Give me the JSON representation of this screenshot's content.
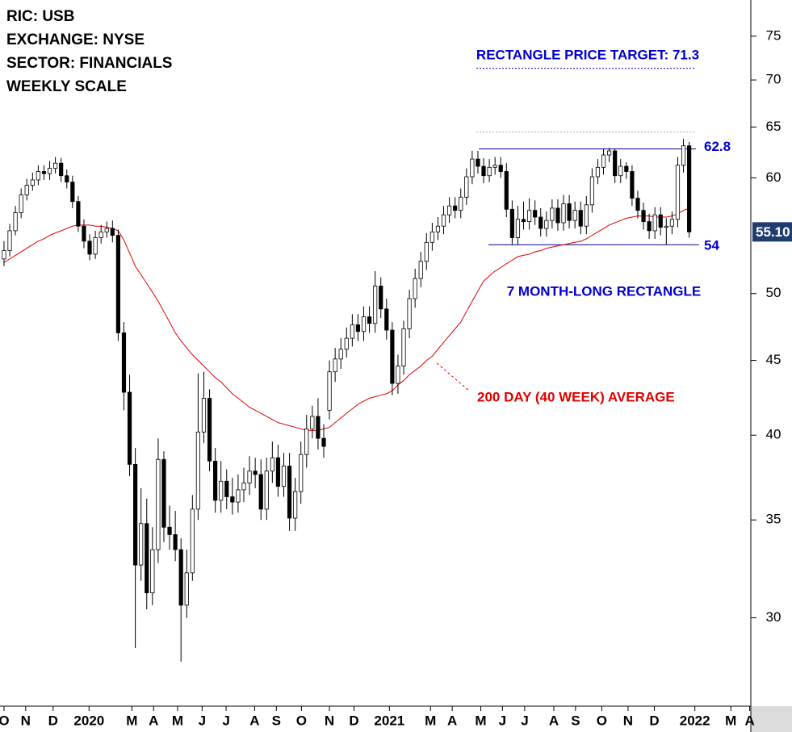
{
  "chart_data": {
    "type": "candlestick",
    "title_lines": [
      "RIC: USB",
      "EXCHANGE: NYSE",
      "SECTOR: FINANCIALS",
      "WEEKLY SCALE"
    ],
    "open": [
      52.8,
      53.5,
      55.2,
      56.8,
      58.4,
      59.3,
      59.8,
      60.6,
      60.4,
      60.9,
      61.4,
      60.2,
      59.6,
      57.8,
      55.6,
      54.3,
      53.2,
      54.6,
      55.1,
      55.4,
      54.8,
      47.0,
      42.8,
      38.2,
      32.6,
      34.8,
      31.2,
      33.4,
      38.5,
      34.6,
      34.2,
      33.4,
      30.6,
      32.2,
      35.6,
      40.2,
      42.4,
      38.4,
      36.1,
      37.2,
      36.3,
      36.0,
      36.7,
      37.1,
      37.8,
      37.6,
      35.6,
      37.8,
      38.6,
      36.9,
      38.1,
      35.1,
      36.6,
      38.8,
      40.4,
      41.2,
      39.8,
      41.6,
      44.2,
      45.1,
      45.8,
      46.6,
      47.6,
      47.1,
      48.2,
      47.7,
      50.6,
      48.8,
      47.2,
      43.4,
      44.6,
      47.3,
      49.6,
      51.2,
      52.6,
      54.2,
      55.1,
      55.6,
      56.6,
      57.4,
      57.0,
      58.2,
      60.1,
      61.8,
      61.1,
      60.2,
      61.0,
      61.2,
      60.6,
      57.1,
      54.6,
      56.2,
      56.0,
      57.0,
      56.4,
      55.4,
      56.1,
      57.2,
      55.9,
      57.6,
      56.1,
      57.0,
      55.6,
      57.5,
      60.1,
      61.0,
      62.2,
      62.6,
      60.2,
      61.1,
      60.6,
      58.1,
      57.0,
      56.0,
      55.2,
      56.6,
      55.5,
      55.6,
      56.2,
      61.2,
      63.1
    ],
    "high": [
      54.3,
      55.8,
      57.4,
      59.0,
      59.9,
      60.5,
      61.2,
      61.2,
      61.6,
      62.0,
      61.9,
      60.8,
      60.2,
      58.3,
      56.2,
      54.9,
      55.2,
      55.7,
      56.0,
      56.1,
      55.3,
      47.8,
      44.0,
      39.2,
      36.8,
      36.2,
      34.6,
      39.8,
      39.0,
      35.8,
      35.5,
      34.0,
      33.4,
      36.4,
      44.1,
      44.2,
      43.0,
      39.2,
      38.4,
      37.9,
      37.4,
      37.6,
      38.0,
      38.7,
      38.6,
      38.5,
      38.6,
      39.6,
      39.4,
      38.9,
      38.9,
      37.4,
      39.6,
      41.3,
      41.9,
      42.4,
      40.7,
      45.0,
      45.9,
      46.6,
      47.4,
      48.4,
      48.4,
      49.0,
      49.0,
      51.8,
      51.3,
      49.6,
      47.8,
      45.4,
      47.9,
      50.3,
      52.0,
      53.4,
      55.0,
      55.9,
      56.4,
      57.4,
      58.2,
      58.2,
      59.0,
      60.9,
      62.6,
      62.6,
      61.9,
      61.8,
      62.0,
      62.0,
      61.4,
      57.9,
      57.4,
      57.8,
      58.1,
      57.9,
      57.2,
      56.9,
      58.0,
      58.0,
      58.4,
      58.4,
      57.8,
      57.8,
      58.3,
      60.9,
      61.8,
      62.8,
      62.9,
      62.8,
      61.8,
      61.5,
      61.2,
      58.8,
      57.7,
      56.7,
      57.3,
      57.3,
      56.3,
      56.9,
      62.0,
      63.8,
      63.5
    ],
    "low": [
      52.2,
      53.0,
      54.8,
      56.3,
      57.9,
      58.8,
      59.3,
      59.8,
      59.8,
      60.4,
      59.6,
      59.0,
      57.2,
      55.1,
      53.7,
      52.7,
      52.8,
      54.1,
      54.6,
      54.2,
      46.4,
      41.6,
      37.5,
      28.6,
      31.8,
      30.4,
      30.6,
      32.7,
      33.8,
      33.4,
      32.8,
      28.0,
      30.0,
      31.8,
      35.0,
      39.5,
      37.8,
      35.4,
      35.4,
      35.6,
      35.3,
      35.4,
      36.0,
      36.4,
      36.8,
      35.0,
      35.0,
      37.1,
      36.3,
      36.3,
      34.4,
      34.4,
      35.9,
      38.0,
      39.8,
      39.1,
      38.6,
      41.0,
      43.5,
      44.4,
      45.2,
      46.0,
      46.4,
      46.4,
      47.0,
      47.0,
      48.1,
      46.5,
      42.6,
      42.7,
      44.0,
      46.6,
      48.9,
      50.5,
      51.9,
      53.5,
      54.4,
      54.9,
      55.9,
      56.3,
      56.3,
      57.5,
      59.4,
      60.4,
      59.5,
      59.6,
      60.3,
      60.0,
      56.4,
      54.0,
      54.0,
      55.3,
      55.3,
      55.7,
      54.7,
      54.7,
      55.4,
      55.2,
      55.2,
      55.4,
      55.4,
      54.9,
      54.9,
      56.8,
      59.4,
      60.3,
      61.5,
      59.5,
      59.5,
      59.9,
      57.4,
      56.3,
      55.3,
      54.5,
      54.5,
      54.8,
      54.0,
      54.9,
      55.5,
      60.5,
      54.6
    ],
    "close": [
      53.5,
      55.2,
      56.8,
      58.4,
      59.3,
      59.8,
      60.6,
      60.4,
      60.9,
      61.4,
      60.2,
      59.6,
      57.8,
      55.6,
      54.3,
      53.2,
      54.6,
      55.1,
      55.4,
      54.8,
      47.0,
      42.8,
      38.2,
      32.6,
      34.8,
      31.2,
      33.4,
      38.5,
      34.6,
      34.2,
      33.4,
      30.6,
      32.2,
      35.6,
      40.2,
      42.4,
      38.4,
      36.1,
      37.2,
      36.3,
      36.0,
      36.7,
      37.1,
      37.8,
      37.6,
      35.6,
      37.8,
      38.6,
      36.9,
      38.1,
      35.1,
      36.6,
      38.8,
      40.4,
      41.2,
      39.8,
      39.3,
      44.2,
      45.1,
      45.8,
      46.6,
      47.6,
      47.1,
      48.2,
      47.7,
      50.6,
      48.8,
      47.2,
      43.4,
      44.6,
      47.3,
      49.6,
      51.2,
      52.6,
      54.2,
      55.1,
      55.6,
      56.6,
      57.4,
      57.0,
      58.2,
      60.1,
      61.8,
      61.1,
      60.2,
      61.0,
      61.2,
      60.6,
      57.1,
      54.6,
      56.2,
      56.0,
      57.0,
      56.4,
      55.4,
      56.1,
      57.2,
      55.9,
      57.6,
      56.1,
      57.0,
      55.6,
      57.5,
      60.1,
      61.0,
      62.2,
      62.6,
      60.2,
      61.1,
      60.6,
      58.1,
      57.0,
      56.0,
      55.2,
      56.6,
      55.5,
      55.6,
      56.2,
      61.2,
      63.1,
      55.1
    ],
    "series": [
      {
        "name": "200 DAY (40 WEEK) AVERAGE",
        "color": "#e00000",
        "values": [
          52.5,
          52.8,
          53.1,
          53.4,
          53.7,
          54.0,
          54.3,
          54.5,
          54.8,
          55.0,
          55.2,
          55.4,
          55.6,
          55.7,
          55.7,
          55.7,
          55.6,
          55.6,
          55.5,
          55.4,
          55.2,
          54.4,
          53.3,
          52.2,
          51.5,
          50.8,
          50.1,
          49.4,
          48.6,
          47.8,
          47.0,
          46.4,
          45.9,
          45.4,
          45.0,
          44.6,
          44.2,
          43.8,
          43.5,
          43.1,
          42.7,
          42.4,
          42.1,
          41.8,
          41.6,
          41.4,
          41.2,
          41.0,
          40.8,
          40.7,
          40.6,
          40.5,
          40.4,
          40.3,
          40.3,
          40.3,
          40.4,
          40.5,
          40.8,
          41.1,
          41.4,
          41.7,
          42.0,
          42.2,
          42.4,
          42.5,
          42.6,
          42.7,
          42.9,
          43.3,
          43.6,
          44.0,
          44.3,
          44.6,
          45.0,
          45.3,
          45.8,
          46.3,
          46.8,
          47.3,
          47.8,
          48.6,
          49.4,
          50.2,
          51.0,
          51.4,
          51.8,
          52.1,
          52.4,
          52.7,
          53.0,
          53.1,
          53.2,
          53.4,
          53.5,
          53.7,
          53.8,
          53.9,
          54.0,
          54.1,
          54.2,
          54.3,
          54.5,
          54.8,
          55.1,
          55.4,
          55.7,
          55.9,
          56.1,
          56.3,
          56.4,
          56.5,
          56.5,
          56.5,
          56.4,
          56.4,
          56.4,
          56.5,
          56.7,
          57.0,
          57.2
        ]
      }
    ],
    "up_color": "#ffffff",
    "down_color": "#000000",
    "xlim": [
      -0.7,
      130.8
    ],
    "xticks": [
      {
        "value": 0,
        "label": "O"
      },
      {
        "value": 3.8,
        "label": "N"
      },
      {
        "value": 8.6,
        "label": "D"
      },
      {
        "value": 14.9,
        "label": "2020"
      },
      {
        "value": 22.4,
        "label": "M"
      },
      {
        "value": 26.2,
        "label": "A"
      },
      {
        "value": 30.4,
        "label": "M"
      },
      {
        "value": 34.7,
        "label": "J"
      },
      {
        "value": 38.9,
        "label": "J"
      },
      {
        "value": 43.9,
        "label": "A"
      },
      {
        "value": 47.7,
        "label": "S"
      },
      {
        "value": 52.1,
        "label": "O"
      },
      {
        "value": 57,
        "label": "N"
      },
      {
        "value": 61.3,
        "label": "D"
      },
      {
        "value": 67.5,
        "label": "2021"
      },
      {
        "value": 74.7,
        "label": "M"
      },
      {
        "value": 78.5,
        "label": "A"
      },
      {
        "value": 83.5,
        "label": "M"
      },
      {
        "value": 87.3,
        "label": "J"
      },
      {
        "value": 91.2,
        "label": "J"
      },
      {
        "value": 96.3,
        "label": "A"
      },
      {
        "value": 100.1,
        "label": "S"
      },
      {
        "value": 104.7,
        "label": "O"
      },
      {
        "value": 109.3,
        "label": "N"
      },
      {
        "value": 113.9,
        "label": "D"
      },
      {
        "value": 121,
        "label": "2022"
      },
      {
        "value": 127.3,
        "label": "M"
      },
      {
        "value": 130.6,
        "label": "A"
      }
    ],
    "ylim": [
      26.1,
      79.4
    ],
    "log_scale": true,
    "yticks": [
      30,
      35,
      40,
      45,
      50,
      60,
      65,
      70,
      75
    ],
    "resistance": 62.8,
    "support": 54,
    "upper_guide": 64.5,
    "target": 71.3,
    "target_label": "RECTANGLE PRICE TARGET: 71.3",
    "pattern_label": "7 MONTH-LONG RECTANGLE",
    "last_price": {
      "value": 55.1,
      "label": "55.10"
    }
  }
}
